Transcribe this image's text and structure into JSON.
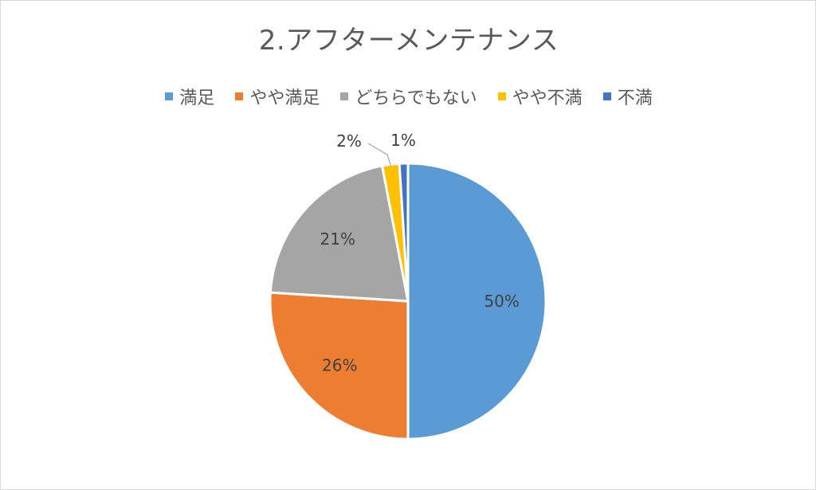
{
  "chart_data": {
    "type": "pie",
    "title": "2.アフターメンテナンス",
    "categories": [
      "満足",
      "やや満足",
      "どちらでもない",
      "やや不満",
      "不満"
    ],
    "values": [
      50,
      26,
      21,
      2,
      1
    ],
    "labels": [
      "50%",
      "26%",
      "21%",
      "2%",
      "1%"
    ],
    "colors": [
      "#5b9bd5",
      "#ed7d31",
      "#a5a5a5",
      "#ffc000",
      "#4472c4"
    ],
    "legend_position": "top"
  }
}
